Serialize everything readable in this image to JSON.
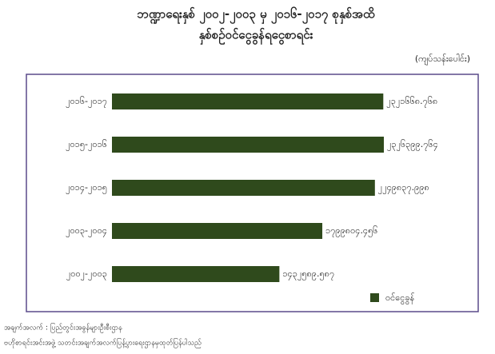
{
  "chart_data": {
    "type": "bar",
    "orientation": "horizontal",
    "title": "ဘဏ္ဍာရေးနှစ် ၂၀၀၂-၂၀၀၃ မှ ၂၀၁၆-၂၀၁၇ စုနှစ်အထိ",
    "subtitle": "နှစ်စဉ်ဝင်ငွေခွန်ရငွေစာရင်း",
    "unit": "(ကျပ်သန်းပေါင်း)",
    "categories": [
      "၂၀၁၆-၂၀၁၇",
      "၂၀၁၅-၂၀၁၆",
      "၂၀၁၄-၂၀၁၅",
      "၂၀၀၃-၂၀၀၄",
      "၂၀၀၂-၂၀၀၃"
    ],
    "series": [
      {
        "name": "ဝင်ငွေခွန်",
        "color": "#2f4a1c",
        "values": [
          2321668.768,
          2326399.764,
          2249837.998,
          1799804.456,
          1432589.587
        ],
        "value_labels": [
          "၂၃၂၁၆၆၈.၇၆၈",
          "၂၃၂၆၃၉၉.၇၆၄",
          "၂၂၄၉၈၃၇.၉၉၈",
          "၁၇၉၉၈၀၄.၄၅၆",
          "၁၄၃၂၅၈၉.၅၈၇"
        ]
      }
    ],
    "legend": "bottom-right",
    "notes": [
      "အချက်အလက် : ပြည်တွင်းအခွန်များဦးစီးဌာန",
      "ဗဟိုစာရင်းအင်းအဖွဲ့ သတင်းအချက်အလက်ပြန့်ပွားရေးဌာနမှထုတ်ပြန်ပါသည်"
    ]
  }
}
